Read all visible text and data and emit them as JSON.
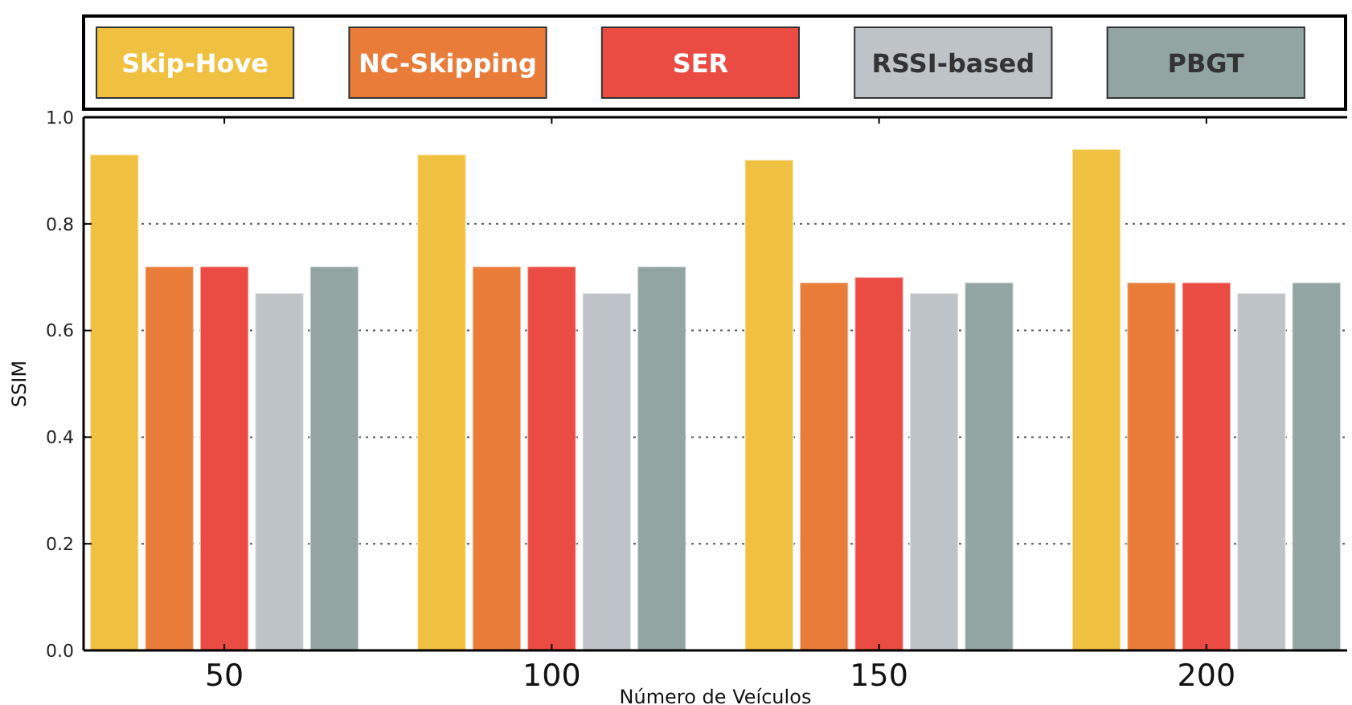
{
  "chart_data": {
    "type": "bar",
    "xlabel": "Número de Veículos",
    "ylabel": "SSIM",
    "categories": [
      "50",
      "100",
      "150",
      "200"
    ],
    "series": [
      {
        "name": "Skip-Hove",
        "color": "#f0c040",
        "values": [
          0.93,
          0.93,
          0.92,
          0.94
        ]
      },
      {
        "name": "NC-Skipping",
        "color": "#e97c38",
        "values": [
          0.72,
          0.72,
          0.69,
          0.69
        ]
      },
      {
        "name": "SER",
        "color": "#ea4b43",
        "values": [
          0.72,
          0.72,
          0.7,
          0.69
        ]
      },
      {
        "name": "RSSI-based",
        "color": "#bec3c7",
        "values": [
          0.67,
          0.67,
          0.67,
          0.67
        ]
      },
      {
        "name": "PBGT",
        "color": "#93a5a3",
        "values": [
          0.72,
          0.72,
          0.69,
          0.69
        ]
      }
    ],
    "ylim": [
      0,
      1
    ],
    "yticks": [
      {
        "value": 0,
        "label": "0.0"
      },
      0.2,
      0.4,
      0.6,
      0.8,
      {
        "value": 1,
        "label": "1.0"
      }
    ],
    "grid": "y",
    "legend": "top"
  }
}
